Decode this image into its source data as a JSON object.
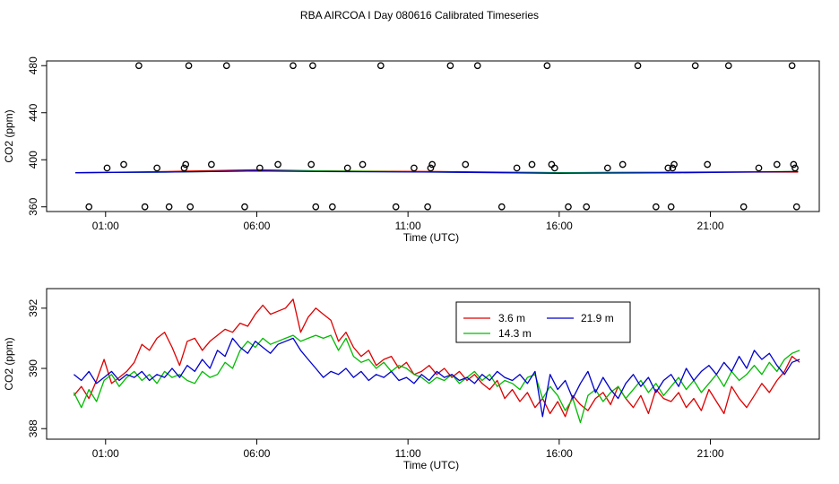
{
  "figure": {
    "title": "RBA AIRCOA I  Day 080616  Calibrated Timeseries"
  },
  "chart_data": [
    {
      "type": "scatter+line",
      "xlabel": "Time (UTC)",
      "ylabel": "CO2 (ppm)",
      "xlim": [
        -0.95,
        24.6
      ],
      "ylim": [
        356,
        484
      ],
      "xticks": [
        {
          "v": 1,
          "label": "01:00"
        },
        {
          "v": 6,
          "label": "06:00"
        },
        {
          "v": 11,
          "label": "11:00"
        },
        {
          "v": 16,
          "label": "16:00"
        },
        {
          "v": 21,
          "label": "21:00"
        }
      ],
      "yticks": [
        {
          "v": 360,
          "label": "360"
        },
        {
          "v": 400,
          "label": "400"
        },
        {
          "v": 440,
          "label": "440"
        },
        {
          "v": 480,
          "label": "480"
        }
      ],
      "markers": {
        "x": [
          0.45,
          1.05,
          1.6,
          2.1,
          2.3,
          2.7,
          3.1,
          3.6,
          3.65,
          3.75,
          3.8,
          4.5,
          5.0,
          5.6,
          6.1,
          6.7,
          7.2,
          7.8,
          7.85,
          7.95,
          8.5,
          9.0,
          9.5,
          10.1,
          10.6,
          11.2,
          11.65,
          11.75,
          11.8,
          12.4,
          12.9,
          13.3,
          14.1,
          14.6,
          15.1,
          15.6,
          15.75,
          15.85,
          16.3,
          16.9,
          17.6,
          18.1,
          18.6,
          19.2,
          19.6,
          19.7,
          19.75,
          19.8,
          20.5,
          20.9,
          21.6,
          22.1,
          22.6,
          23.2,
          23.7,
          23.75,
          23.8,
          23.85
        ],
        "y": [
          360,
          393,
          396,
          480,
          360,
          393,
          360,
          393,
          396,
          480,
          360,
          396,
          480,
          360,
          393,
          396,
          480,
          396,
          480,
          360,
          360,
          393,
          396,
          480,
          360,
          393,
          360,
          393,
          396,
          480,
          396,
          480,
          360,
          393,
          396,
          480,
          396,
          393,
          360,
          360,
          393,
          396,
          480,
          360,
          393,
          360,
          393,
          396,
          480,
          396,
          480,
          360,
          393,
          396,
          480,
          396,
          393,
          360
        ]
      },
      "series": [
        {
          "color": "#dd0000",
          "x": [
            0.0,
            3.0,
            6.0,
            8.0,
            12.0,
            16.0,
            20.0,
            23.9
          ],
          "y": [
            389,
            390,
            391.5,
            390.5,
            390,
            389,
            389.5,
            389.5
          ]
        },
        {
          "color": "#00bb00",
          "x": [
            0.0,
            3.0,
            6.0,
            8.0,
            12.0,
            16.0,
            20.0,
            23.9
          ],
          "y": [
            389,
            389.5,
            390.5,
            390.5,
            389.5,
            389,
            389.5,
            390
          ]
        },
        {
          "color": "#0000cc",
          "x": [
            0.0,
            3.0,
            6.0,
            8.0,
            12.0,
            16.0,
            20.0,
            23.9
          ],
          "y": [
            389,
            389.5,
            390.5,
            390,
            389.5,
            388.5,
            389,
            390
          ]
        }
      ]
    },
    {
      "type": "line",
      "xlabel": "Time (UTC)",
      "ylabel": "CO2 (ppm)",
      "xlim": [
        -0.95,
        24.6
      ],
      "ylim": [
        387.65,
        392.65
      ],
      "xticks": [
        {
          "v": 1,
          "label": "01:00"
        },
        {
          "v": 6,
          "label": "06:00"
        },
        {
          "v": 11,
          "label": "11:00"
        },
        {
          "v": 16,
          "label": "16:00"
        },
        {
          "v": 21,
          "label": "21:00"
        }
      ],
      "yticks": [
        {
          "v": 388,
          "label": "388"
        },
        {
          "v": 390,
          "label": "390"
        },
        {
          "v": 392,
          "label": "392"
        }
      ],
      "legend": {
        "placement": "top-center",
        "entries": [
          {
            "name": "3.6 m",
            "color": "#dd0000"
          },
          {
            "name": "21.9 m",
            "color": "#0000cc"
          },
          {
            "name": "14.3 m",
            "color": "#00bb00"
          }
        ]
      },
      "series": [
        {
          "name": "3.6 m",
          "color": "#dd0000",
          "x": [
            -0.05,
            0.2,
            0.45,
            0.7,
            0.95,
            1.2,
            1.45,
            1.7,
            1.95,
            2.2,
            2.45,
            2.7,
            2.95,
            3.2,
            3.45,
            3.7,
            3.95,
            4.2,
            4.45,
            4.7,
            4.95,
            5.2,
            5.45,
            5.7,
            5.95,
            6.2,
            6.45,
            6.7,
            6.95,
            7.2,
            7.45,
            7.7,
            7.95,
            8.2,
            8.45,
            8.7,
            8.95,
            9.2,
            9.45,
            9.7,
            9.95,
            10.2,
            10.45,
            10.7,
            10.95,
            11.2,
            11.45,
            11.7,
            11.95,
            12.2,
            12.45,
            12.7,
            12.95,
            13.2,
            13.45,
            13.7,
            13.95,
            14.2,
            14.45,
            14.7,
            14.95,
            15.2,
            15.45,
            15.7,
            15.95,
            16.2,
            16.45,
            16.7,
            16.95,
            17.2,
            17.45,
            17.7,
            17.95,
            18.2,
            18.45,
            18.7,
            18.95,
            19.2,
            19.45,
            19.7,
            19.95,
            20.2,
            20.45,
            20.7,
            20.95,
            21.2,
            21.45,
            21.7,
            21.95,
            22.2,
            22.45,
            22.7,
            22.95,
            23.2,
            23.45,
            23.7,
            23.95
          ],
          "y": [
            389.1,
            389.4,
            389.0,
            389.6,
            390.3,
            389.5,
            389.7,
            389.9,
            390.2,
            390.8,
            390.6,
            391.0,
            391.2,
            390.7,
            390.1,
            390.9,
            391.0,
            390.6,
            390.9,
            391.1,
            391.3,
            391.2,
            391.5,
            391.4,
            391.8,
            392.1,
            391.8,
            391.9,
            392.0,
            392.3,
            391.2,
            391.7,
            392.0,
            391.8,
            391.6,
            390.9,
            391.2,
            390.7,
            390.4,
            390.6,
            390.1,
            390.3,
            390.4,
            390.0,
            390.2,
            389.8,
            389.9,
            390.1,
            389.8,
            390.0,
            389.7,
            389.9,
            389.6,
            389.8,
            389.5,
            389.3,
            389.6,
            389.0,
            389.3,
            388.9,
            389.2,
            388.7,
            389.0,
            388.5,
            388.9,
            388.4,
            389.1,
            388.8,
            388.6,
            389.0,
            389.2,
            388.8,
            389.4,
            389.0,
            388.7,
            389.1,
            388.5,
            389.3,
            389.0,
            388.9,
            389.2,
            388.7,
            389.0,
            388.6,
            389.3,
            388.9,
            388.5,
            389.4,
            389.0,
            388.7,
            389.1,
            389.5,
            389.2,
            389.6,
            389.9,
            390.4,
            390.2
          ]
        },
        {
          "name": "14.3 m",
          "color": "#00bb00",
          "x": [
            -0.05,
            0.2,
            0.45,
            0.7,
            0.95,
            1.2,
            1.45,
            1.7,
            1.95,
            2.2,
            2.45,
            2.7,
            2.95,
            3.2,
            3.45,
            3.7,
            3.95,
            4.2,
            4.45,
            4.7,
            4.95,
            5.2,
            5.45,
            5.7,
            5.95,
            6.2,
            6.45,
            6.7,
            6.95,
            7.2,
            7.45,
            7.7,
            7.95,
            8.2,
            8.45,
            8.7,
            8.95,
            9.2,
            9.45,
            9.7,
            9.95,
            10.2,
            10.45,
            10.7,
            10.95,
            11.2,
            11.45,
            11.7,
            11.95,
            12.2,
            12.45,
            12.7,
            12.95,
            13.2,
            13.45,
            13.7,
            13.95,
            14.2,
            14.45,
            14.7,
            14.95,
            15.2,
            15.45,
            15.7,
            15.95,
            16.2,
            16.45,
            16.7,
            16.95,
            17.2,
            17.45,
            17.7,
            17.95,
            18.2,
            18.45,
            18.7,
            18.95,
            19.2,
            19.45,
            19.7,
            19.95,
            20.2,
            20.45,
            20.7,
            20.95,
            21.2,
            21.45,
            21.7,
            21.95,
            22.2,
            22.45,
            22.7,
            22.95,
            23.2,
            23.45,
            23.7,
            23.95
          ],
          "y": [
            389.2,
            388.7,
            389.3,
            388.9,
            389.6,
            389.8,
            389.4,
            389.7,
            389.9,
            389.6,
            389.8,
            389.5,
            389.9,
            389.7,
            389.8,
            389.6,
            389.5,
            389.9,
            389.7,
            389.8,
            390.2,
            390.0,
            390.6,
            390.9,
            390.7,
            391.0,
            390.8,
            390.9,
            391.0,
            391.1,
            390.9,
            391.0,
            391.1,
            391.0,
            391.1,
            390.6,
            391.0,
            390.4,
            390.2,
            390.3,
            390.0,
            390.2,
            389.9,
            390.1,
            390.0,
            389.8,
            389.7,
            389.5,
            389.7,
            389.6,
            389.8,
            389.5,
            389.7,
            389.9,
            389.6,
            389.8,
            389.4,
            389.6,
            389.5,
            389.3,
            389.7,
            389.8,
            389.0,
            389.4,
            389.1,
            388.6,
            389.0,
            388.2,
            389.1,
            389.3,
            388.9,
            389.2,
            389.4,
            389.0,
            389.3,
            389.6,
            389.2,
            389.5,
            389.1,
            389.4,
            389.7,
            389.3,
            389.6,
            389.2,
            389.5,
            389.8,
            389.4,
            389.9,
            389.6,
            389.8,
            390.1,
            389.8,
            390.2,
            389.9,
            390.3,
            390.5,
            390.6
          ]
        },
        {
          "name": "21.9 m",
          "color": "#0000cc",
          "x": [
            -0.05,
            0.2,
            0.45,
            0.7,
            0.95,
            1.2,
            1.45,
            1.7,
            1.95,
            2.2,
            2.45,
            2.7,
            2.95,
            3.2,
            3.45,
            3.7,
            3.95,
            4.2,
            4.45,
            4.7,
            4.95,
            5.2,
            5.45,
            5.7,
            5.95,
            6.2,
            6.45,
            6.7,
            6.95,
            7.2,
            7.45,
            7.7,
            7.95,
            8.2,
            8.45,
            8.7,
            8.95,
            9.2,
            9.45,
            9.7,
            9.95,
            10.2,
            10.45,
            10.7,
            10.95,
            11.2,
            11.45,
            11.7,
            11.95,
            12.2,
            12.45,
            12.7,
            12.95,
            13.2,
            13.45,
            13.7,
            13.95,
            14.2,
            14.45,
            14.7,
            14.95,
            15.2,
            15.45,
            15.7,
            15.95,
            16.2,
            16.45,
            16.7,
            16.95,
            17.2,
            17.45,
            17.7,
            17.95,
            18.2,
            18.45,
            18.7,
            18.95,
            19.2,
            19.45,
            19.7,
            19.95,
            20.2,
            20.45,
            20.7,
            20.95,
            21.2,
            21.45,
            21.7,
            21.95,
            22.2,
            22.45,
            22.7,
            22.95,
            23.2,
            23.45,
            23.7,
            23.95
          ],
          "y": [
            389.8,
            389.6,
            389.9,
            389.5,
            389.7,
            389.9,
            389.6,
            389.8,
            389.7,
            389.9,
            389.6,
            389.8,
            389.7,
            390.0,
            389.7,
            390.1,
            389.9,
            390.3,
            390.0,
            390.6,
            390.4,
            391.0,
            390.7,
            390.5,
            390.9,
            390.7,
            390.5,
            390.8,
            390.9,
            391.0,
            390.6,
            390.3,
            390.0,
            389.7,
            389.9,
            389.8,
            390.0,
            389.7,
            389.9,
            389.6,
            389.8,
            389.7,
            389.9,
            389.6,
            389.7,
            389.5,
            389.8,
            389.6,
            389.9,
            389.7,
            389.8,
            389.6,
            389.7,
            389.5,
            389.8,
            389.6,
            389.9,
            389.7,
            389.6,
            389.8,
            389.5,
            389.9,
            388.4,
            389.8,
            389.3,
            389.6,
            389.0,
            389.5,
            389.9,
            389.2,
            389.7,
            389.3,
            389.0,
            389.5,
            389.8,
            389.4,
            389.7,
            389.2,
            389.6,
            389.8,
            389.4,
            390.0,
            389.6,
            389.9,
            390.1,
            389.8,
            390.2,
            389.9,
            390.4,
            390.0,
            390.6,
            390.3,
            390.5,
            390.1,
            389.8,
            390.2,
            390.3
          ]
        }
      ]
    }
  ]
}
